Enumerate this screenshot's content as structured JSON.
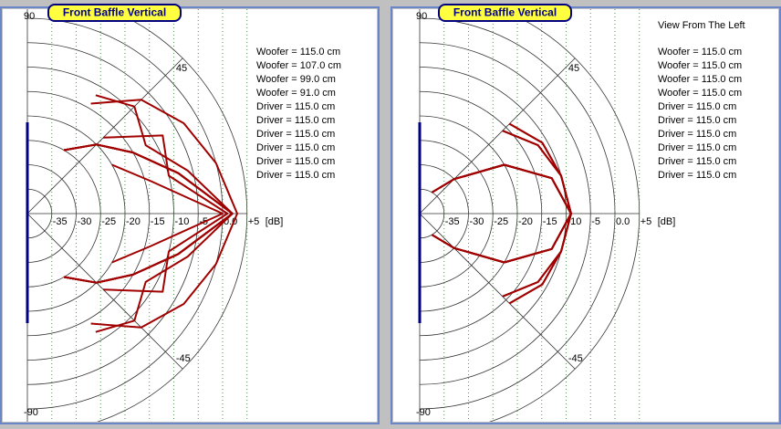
{
  "chart_data": [
    {
      "type": "polar",
      "title": "Front Baffle Vertical",
      "r_label": "[dB]",
      "x": [
        -60,
        -45,
        -30,
        -15,
        0,
        15,
        30,
        45,
        60
      ],
      "rlim": [
        -40,
        5
      ],
      "rticks": [
        -35,
        -30,
        -25,
        -20,
        -15,
        -10,
        -5,
        {
          "value": 0,
          "label": "0.0"
        },
        {
          "value": 5,
          "label": "+5"
        }
      ],
      "angle_ticks": [
        90,
        45,
        -45,
        -90
      ],
      "color": "#a00000",
      "series": [
        {
          "name": "Woofer = 115.0 cm",
          "values": [
            -14,
            -7,
            -3,
            0,
            3,
            0,
            -3,
            -7,
            -14
          ]
        },
        {
          "name": "Woofer = 107.0 cm",
          "values": [
            -12,
            -9,
            -12,
            -6,
            2,
            -6,
            -12,
            -9,
            -12
          ]
        },
        {
          "name": "Woofer = 99.0 cm",
          "values": [
            null,
            -18,
            -8,
            -10,
            1,
            -10,
            -8,
            -18,
            null
          ]
        },
        {
          "name": "Woofer = 91.0 cm",
          "values": [
            null,
            null,
            -20,
            -14,
            0,
            -14,
            -20,
            null,
            null
          ]
        },
        {
          "name": "Driver = 115.0 cm",
          "values": [
            -25,
            -20,
            -15,
            -8,
            2,
            -8,
            -15,
            -20,
            -25
          ]
        },
        {
          "name": "Driver = 115.0 cm",
          "values": [
            -25,
            -20,
            -15,
            -8,
            2,
            -8,
            -15,
            -20,
            -25
          ]
        },
        {
          "name": "Driver = 115.0 cm",
          "values": [
            -25,
            -20,
            -15,
            -8,
            2,
            -8,
            -15,
            -20,
            -25
          ]
        },
        {
          "name": "Driver = 115.0 cm",
          "values": [
            -25,
            -20,
            -15,
            -8,
            2,
            -8,
            -15,
            -20,
            -25
          ]
        },
        {
          "name": "Driver = 115.0 cm",
          "values": [
            -25,
            -20,
            -15,
            -8,
            2,
            -8,
            -15,
            -20,
            -25
          ]
        },
        {
          "name": "Driver = 115.0 cm",
          "values": [
            -25,
            -20,
            -15,
            -8,
            2,
            -8,
            -15,
            -20,
            -25
          ]
        }
      ]
    },
    {
      "type": "polar",
      "title": "Front Baffle Vertical",
      "subtitle": "View From The Left",
      "r_label": "[dB]",
      "x": [
        -60,
        -45,
        -30,
        -15,
        0,
        15,
        30,
        45,
        60
      ],
      "rlim": [
        -40,
        5
      ],
      "rticks": [
        -35,
        -30,
        -25,
        -20,
        -15,
        -10,
        -5,
        {
          "value": 0,
          "label": "0.0"
        },
        {
          "value": 5,
          "label": "+5"
        }
      ],
      "angle_ticks": [
        90,
        45,
        -45,
        -90
      ],
      "color": "#a00000",
      "series": [
        {
          "name": "Woofer = 115.0 cm",
          "values": [
            null,
            -16,
            -12,
            -10,
            -9,
            -10,
            -12,
            -16,
            null
          ]
        },
        {
          "name": "Woofer = 115.0 cm",
          "values": [
            null,
            -14,
            -11,
            -10,
            -9,
            -10,
            -11,
            -14,
            null
          ]
        },
        {
          "name": "Woofer = 115.0 cm",
          "values": [
            null,
            -16,
            -12,
            -10,
            -9,
            -10,
            -12,
            -16,
            null
          ]
        },
        {
          "name": "Woofer = 115.0 cm",
          "values": [
            null,
            -14,
            -11,
            -10,
            -9,
            -10,
            -11,
            -14,
            null
          ]
        },
        {
          "name": "Driver = 115.0 cm",
          "values": [
            -35,
            -30,
            -20,
            -12,
            -9,
            -12,
            -20,
            -30,
            -35
          ]
        },
        {
          "name": "Driver = 115.0 cm",
          "values": [
            -35,
            -30,
            -20,
            -12,
            -9,
            -12,
            -20,
            -30,
            -35
          ]
        },
        {
          "name": "Driver = 115.0 cm",
          "values": [
            -35,
            -30,
            -20,
            -12,
            -9,
            -12,
            -20,
            -30,
            -35
          ]
        },
        {
          "name": "Driver = 115.0 cm",
          "values": [
            -35,
            -30,
            -20,
            -12,
            -9,
            -12,
            -20,
            -30,
            -35
          ]
        },
        {
          "name": "Driver = 115.0 cm",
          "values": [
            -35,
            -30,
            -20,
            -12,
            -9,
            -12,
            -20,
            -30,
            -35
          ]
        },
        {
          "name": "Driver = 115.0 cm",
          "values": [
            -35,
            -30,
            -20,
            -12,
            -9,
            -12,
            -20,
            -30,
            -35
          ]
        }
      ]
    }
  ]
}
